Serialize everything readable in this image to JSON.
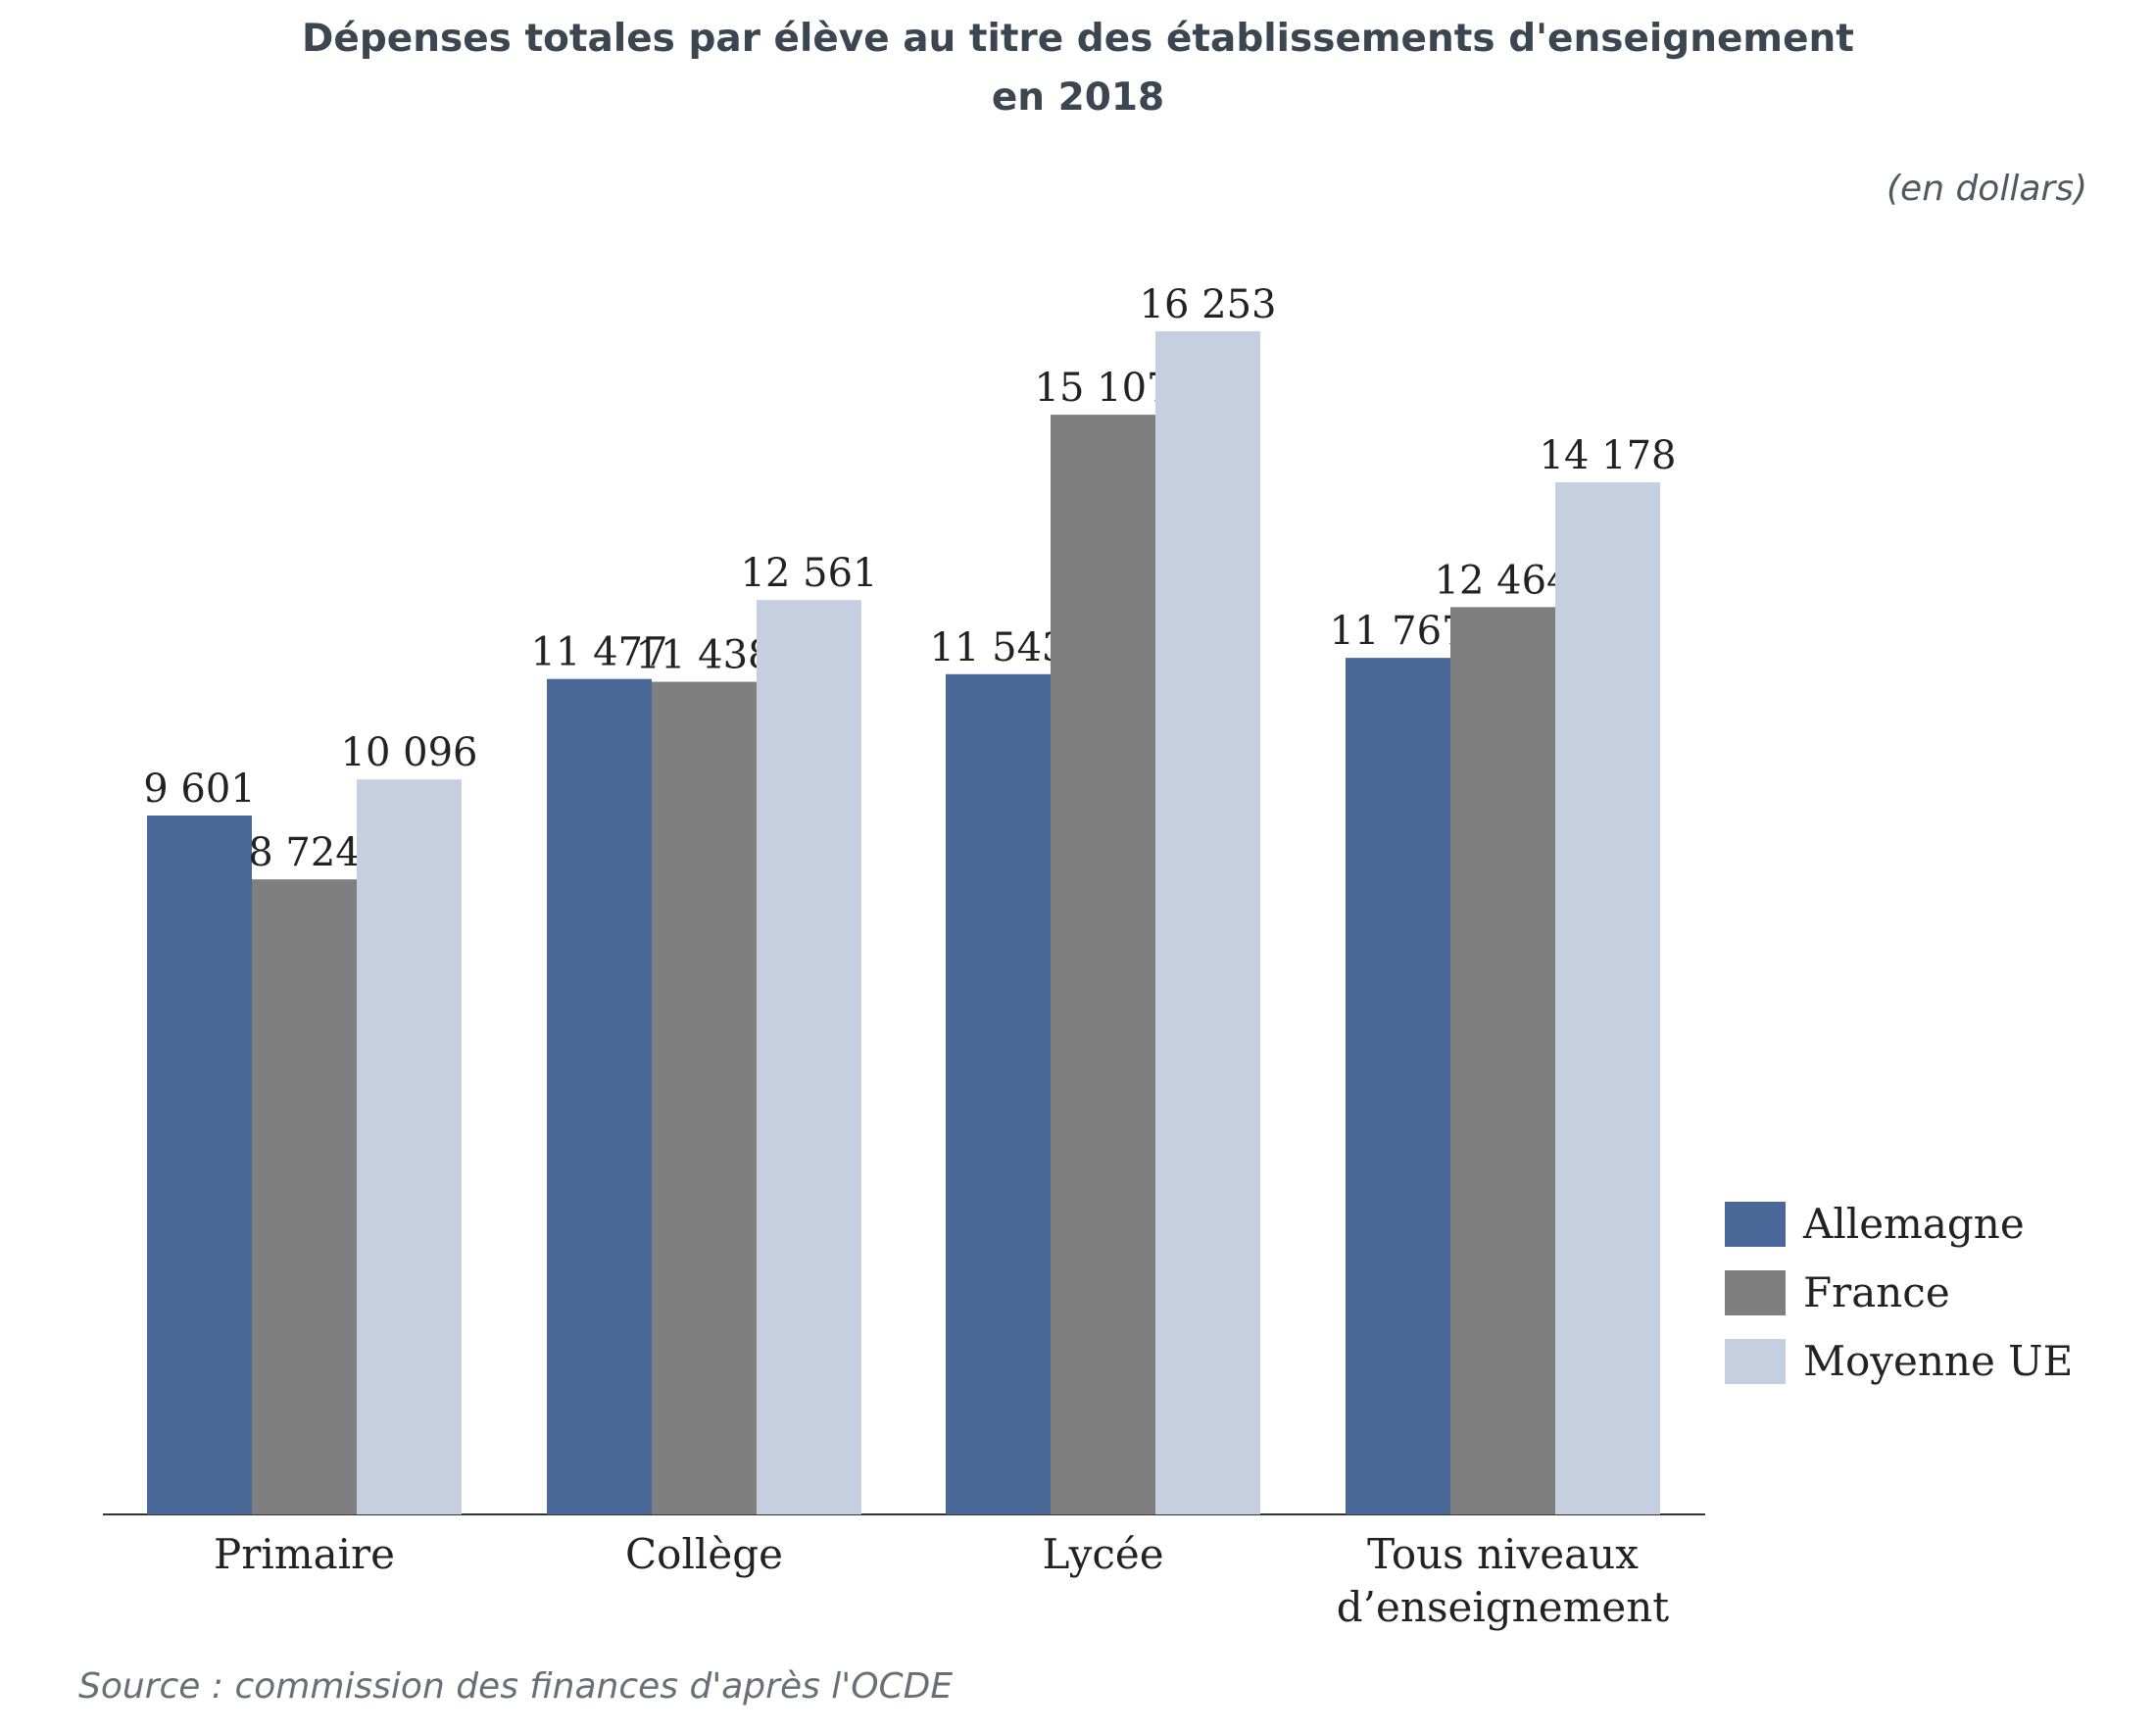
{
  "header": {
    "title_line1": "Dépenses totales par élève au titre des établissements d'enseignement",
    "title_line2": "en 2018",
    "unit": "(en dollars)"
  },
  "footer": {
    "source": "Source : commission des finances d'après l'OCDE"
  },
  "chart_data": {
    "type": "bar",
    "title": "Dépenses totales par élève au titre des établissements d'enseignement en 2018",
    "unit": "(en dollars)",
    "categories": [
      [
        "Primaire"
      ],
      [
        "Collège"
      ],
      [
        "Lycée"
      ],
      [
        "Tous niveaux",
        "d’enseignement"
      ]
    ],
    "series": [
      {
        "name": "Allemagne",
        "color": "#4a6897",
        "values": [
          9601,
          11477,
          11543,
          11767
        ],
        "labels": [
          "9 601",
          "11 477",
          "11 543",
          "11 767"
        ]
      },
      {
        "name": "France",
        "color": "#7f7f7f",
        "values": [
          8724,
          11438,
          15107,
          12464
        ],
        "labels": [
          "8 724",
          "11 438",
          "15 107",
          "12 464"
        ]
      },
      {
        "name": "Moyenne UE",
        "color": "#c5cfe0",
        "values": [
          10096,
          12561,
          16253,
          14178
        ],
        "labels": [
          "10 096",
          "12 561",
          "16 253",
          "14 178"
        ]
      }
    ],
    "ylim": [
      0,
      16253
    ],
    "grid": false,
    "legend": "right"
  }
}
